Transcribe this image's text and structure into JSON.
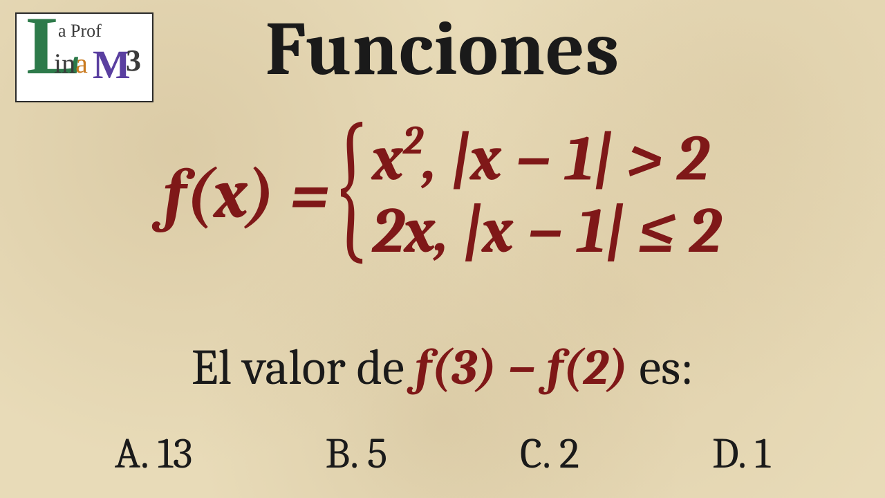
{
  "logo": {
    "line1": "a Prof",
    "line2_prefix": "in",
    "line2_a": "a",
    "big_L": "L",
    "big_M": "M",
    "exponent": "3"
  },
  "title": "Funciones",
  "formula": {
    "lhs": "f(x) =",
    "case1": "x",
    "case1_sup": "2",
    "case1_rest": ", |x − 1| > 2",
    "case2": "2x, |x − 1| ≤ 2"
  },
  "question": {
    "prefix": "El valor de ",
    "math": "f(3) − f(2)",
    "suffix": " es:"
  },
  "options": [
    {
      "label": "A.",
      "value": "13"
    },
    {
      "label": "B.",
      "value": "5"
    },
    {
      "label": "C.",
      "value": "2"
    },
    {
      "label": "D.",
      "value": "1"
    }
  ],
  "colors": {
    "formula": "#7f1818",
    "text": "#1a1a1a",
    "background": "#e8dbb8"
  }
}
